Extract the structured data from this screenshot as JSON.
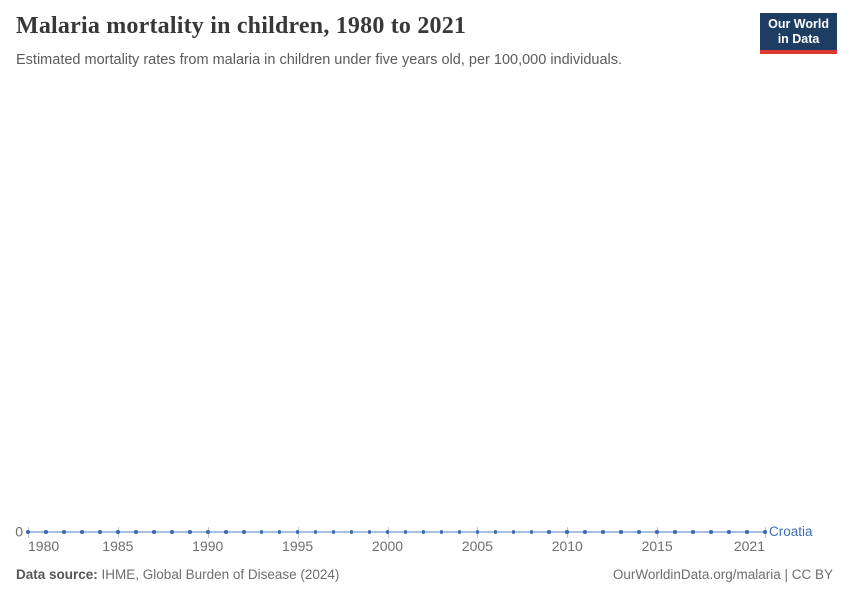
{
  "header": {
    "logo": {
      "line1": "Our World",
      "line2": "in Data",
      "bg_color": "#1d3d63",
      "accent_color": "#dc3a31"
    }
  },
  "chart_data": {
    "type": "line",
    "title": "Malaria mortality in children, 1980 to 2021",
    "subtitle": "Estimated mortality rates from malaria in children under five years old, per 100,000 individuals.",
    "x": [
      1980,
      1981,
      1982,
      1983,
      1984,
      1985,
      1986,
      1987,
      1988,
      1989,
      1990,
      1991,
      1992,
      1993,
      1994,
      1995,
      1996,
      1997,
      1998,
      1999,
      2000,
      2001,
      2002,
      2003,
      2004,
      2005,
      2006,
      2007,
      2008,
      2009,
      2010,
      2011,
      2012,
      2013,
      2014,
      2015,
      2016,
      2017,
      2018,
      2019,
      2020,
      2021
    ],
    "series": [
      {
        "name": "Croatia",
        "values": [
          0,
          0,
          0,
          0,
          0,
          0,
          0,
          0,
          0,
          0,
          0,
          0,
          0,
          0,
          0,
          0,
          0,
          0,
          0,
          0,
          0,
          0,
          0,
          0,
          0,
          0,
          0,
          0,
          0,
          0,
          0,
          0,
          0,
          0,
          0,
          0,
          0,
          0,
          0,
          0,
          0,
          0
        ],
        "line_color": "#a6c0e0",
        "marker_color": "#3c6bb0",
        "label_color": "#3d6cb5"
      }
    ],
    "x_ticks": [
      1980,
      1985,
      1990,
      1995,
      2000,
      2005,
      2010,
      2015,
      2021
    ],
    "y_ticks": [
      "0"
    ],
    "xlabel": "",
    "ylabel": "",
    "grid": "y-zero-line-only",
    "legend_position": "end-of-line",
    "axis_text_color": "#6e6e6e",
    "tick_mark_color": "#c6c6c6"
  },
  "footer": {
    "datasource_label": "Data source:",
    "datasource_value": "IHME, Global Burden of Disease (2024)",
    "attribution": "OurWorldinData.org/malaria | CC BY"
  }
}
